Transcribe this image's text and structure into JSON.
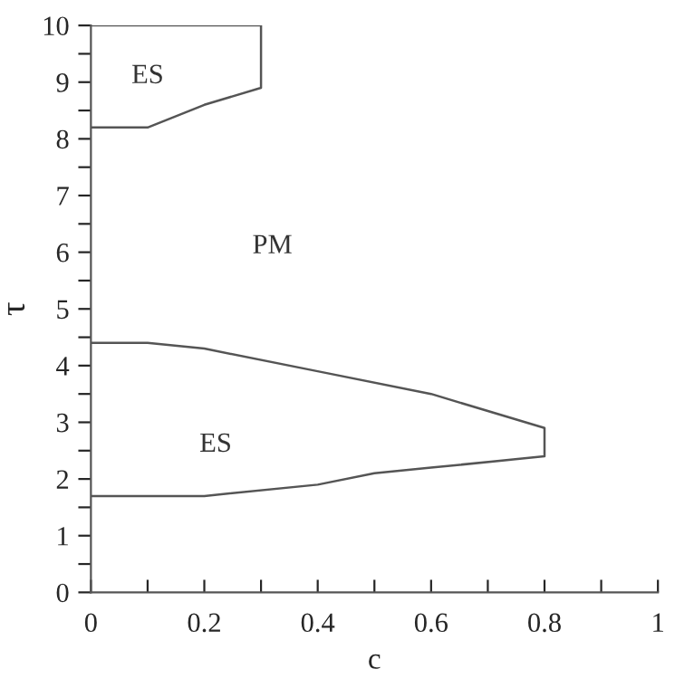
{
  "chart_data": {
    "type": "line",
    "xlabel": "c",
    "ylabel": "τ",
    "series": [
      {
        "color": "#555555",
        "x": [
          0,
          0.1,
          0.2,
          0.3,
          0.3,
          0
        ],
        "values": [
          8.2,
          8.2,
          8.6,
          8.9,
          10,
          10
        ]
      },
      {
        "color": "#555555",
        "x": [
          0,
          0.1,
          0.2,
          0.4,
          0.6,
          0.8,
          0.8,
          0.6,
          0.5,
          0.4,
          0.2,
          0
        ],
        "values": [
          4.4,
          4.4,
          4.3,
          3.9,
          3.5,
          2.9,
          2.4,
          2.2,
          2.1,
          1.9,
          1.7,
          1.7
        ]
      }
    ],
    "annotations": [
      "ES",
      "PM",
      "ES"
    ],
    "xlim": [
      0,
      1
    ],
    "ylim": [
      0,
      10
    ],
    "xticks": [
      0,
      {
        "value": 0.1,
        "label": null
      },
      0.2,
      {
        "value": 0.3,
        "label": null
      },
      0.4,
      {
        "value": 0.5,
        "label": null
      },
      0.6,
      {
        "value": 0.7,
        "label": null
      },
      0.8,
      {
        "value": 0.9,
        "label": null
      },
      1
    ],
    "yticks": [
      0,
      {
        "value": 0.5,
        "label": null
      },
      1,
      {
        "value": 1.5,
        "label": null
      },
      2,
      {
        "value": 2.5,
        "label": null
      },
      3,
      {
        "value": 3.5,
        "label": null
      },
      4,
      {
        "value": 4.5,
        "label": null
      },
      5,
      {
        "value": 5.5,
        "label": null
      },
      6,
      {
        "value": 6.5,
        "label": null
      },
      7,
      {
        "value": 7.5,
        "label": null
      },
      8,
      {
        "value": 8.5,
        "label": null
      },
      9,
      {
        "value": 9.5,
        "label": null
      },
      10
    ],
    "grid": false,
    "legend": false,
    "marker": "none",
    "line_style": "solid"
  }
}
